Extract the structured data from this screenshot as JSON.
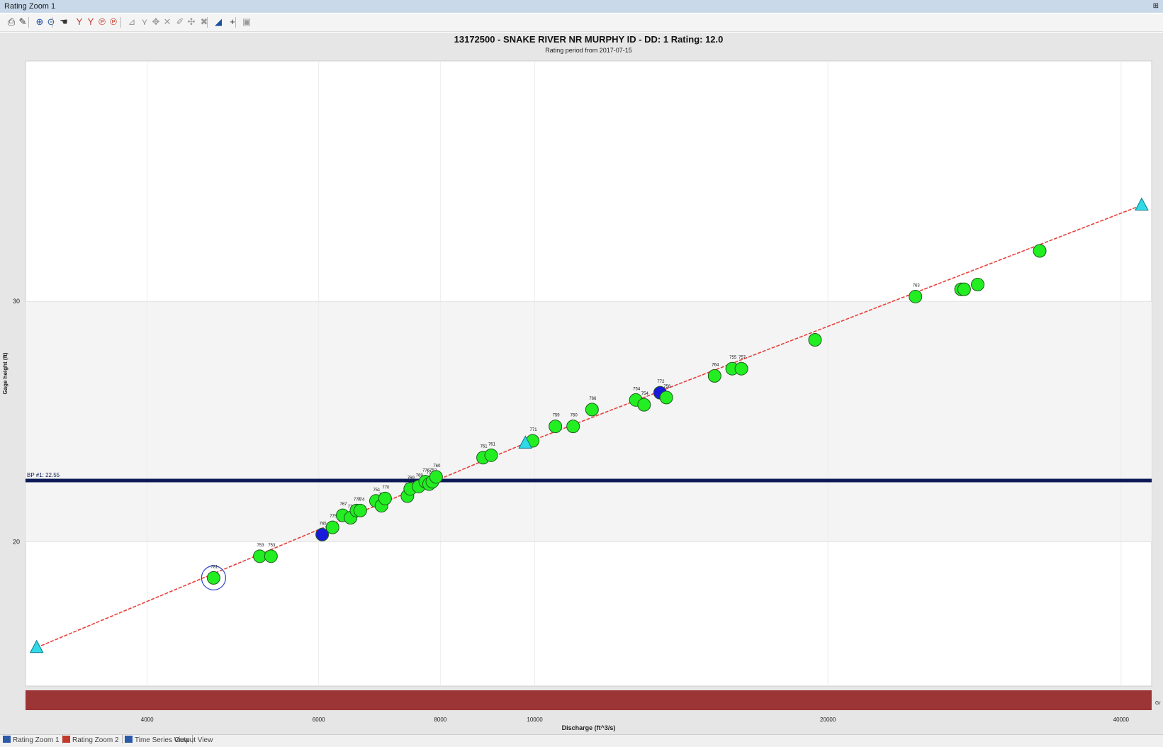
{
  "window": {
    "title": "Rating Zoom 1",
    "pin": "⊞"
  },
  "toolbar": {
    "buttons": [
      {
        "name": "print-icon",
        "glyph": "⎙"
      },
      {
        "name": "edit-icon",
        "glyph": "✎"
      },
      {
        "name": "zoom-in-icon",
        "glyph": "⊕"
      },
      {
        "name": "zoom-fit-icon",
        "glyph": "⊙"
      },
      {
        "name": "pan-icon",
        "glyph": "☚"
      },
      {
        "name": "curve-icon",
        "glyph": "Y"
      },
      {
        "name": "curve-alt-icon",
        "glyph": "Y"
      },
      {
        "name": "curve-edit-icon",
        "glyph": "℗"
      },
      {
        "name": "curve-copy-icon",
        "glyph": "℗"
      },
      {
        "name": "line-tool-icon",
        "glyph": "⊿"
      },
      {
        "name": "point-tool-icon",
        "glyph": "⋎"
      },
      {
        "name": "drag-tool-icon",
        "glyph": "✥"
      },
      {
        "name": "delete-tool-icon",
        "glyph": "✕"
      },
      {
        "name": "pen-tool-icon",
        "glyph": "✐"
      },
      {
        "name": "move-tool-icon",
        "glyph": "✣"
      },
      {
        "name": "remove-tool-icon",
        "glyph": "✖"
      },
      {
        "name": "shift-tool-icon",
        "glyph": "◢"
      },
      {
        "name": "crosshair-icon",
        "glyph": "+"
      },
      {
        "name": "export-icon",
        "glyph": "▣"
      }
    ]
  },
  "chart_data": {
    "type": "scatter",
    "title": "13172500 - SNAKE RIVER NR MURPHY ID - DD: 1 Rating: 12.0",
    "subtitle": "Rating period from 2017-07-15",
    "xlabel": "Discharge (ft^3/s)",
    "ylabel": "Gage height (ft)",
    "x_scale": "log",
    "xlim": [
      3000,
      43000
    ],
    "ylim": [
      14,
      40
    ],
    "x_ticks": [
      4000,
      6000,
      8000,
      10000,
      20000,
      40000
    ],
    "y_ticks": [
      20,
      30
    ],
    "bands": [
      {
        "from": 20,
        "to": 30,
        "color": "#f4f4f4"
      }
    ],
    "breakpoint": {
      "label": "BP #1: 22.55",
      "value": 22.55,
      "color": "#0d1a57"
    },
    "rating_curve": {
      "color": "#e8403c",
      "points": [
        [
          3080,
          15.6
        ],
        [
          9780,
          24.1
        ],
        [
          42000,
          34.0
        ]
      ]
    },
    "curve_nodes": [
      [
        3080,
        15.6
      ],
      [
        9780,
        24.1
      ],
      [
        42000,
        34.0
      ]
    ],
    "measurements": [
      {
        "label": "781",
        "q": 4680,
        "h": 18.5,
        "color": "#22ee22",
        "selected": true
      },
      {
        "label": "753",
        "q": 5220,
        "h": 19.4,
        "color": "#22ee22"
      },
      {
        "label": "753",
        "q": 5360,
        "h": 19.4,
        "color": "#22ee22"
      },
      {
        "label": "765",
        "q": 6050,
        "h": 20.3,
        "color": "#1a1adb"
      },
      {
        "label": "775",
        "q": 6200,
        "h": 20.6,
        "color": "#22ee22"
      },
      {
        "label": "767",
        "q": 6350,
        "h": 21.1,
        "color": "#22ee22"
      },
      {
        "label": "778",
        "q": 6470,
        "h": 21.0,
        "color": "#22ee22"
      },
      {
        "label": "774",
        "q": 6560,
        "h": 21.3,
        "color": "#22ee22"
      },
      {
        "label": "774",
        "q": 6620,
        "h": 21.3,
        "color": "#22ee22"
      },
      {
        "label": "751",
        "q": 6870,
        "h": 21.7,
        "color": "#22ee22"
      },
      {
        "label": "777",
        "q": 6960,
        "h": 21.5,
        "color": "#22ee22"
      },
      {
        "label": "770",
        "q": 7020,
        "h": 21.8,
        "color": "#22ee22"
      },
      {
        "label": "762",
        "q": 7400,
        "h": 21.9,
        "color": "#22ee22"
      },
      {
        "label": "769",
        "q": 7450,
        "h": 22.2,
        "color": "#22ee22"
      },
      {
        "label": "769",
        "q": 7600,
        "h": 22.3,
        "color": "#22ee22"
      },
      {
        "label": "776",
        "q": 7720,
        "h": 22.5,
        "color": "#22ee22"
      },
      {
        "label": "773",
        "q": 7790,
        "h": 22.4,
        "color": "#22ee22"
      },
      {
        "label": "752",
        "q": 7850,
        "h": 22.5,
        "color": "#22ee22"
      },
      {
        "label": "760",
        "q": 7920,
        "h": 22.7,
        "color": "#22ee22"
      },
      {
        "label": "761",
        "q": 8850,
        "h": 23.5,
        "color": "#22ee22"
      },
      {
        "label": "761",
        "q": 9020,
        "h": 23.6,
        "color": "#22ee22"
      },
      {
        "label": "771",
        "q": 9950,
        "h": 24.2,
        "color": "#22ee22"
      },
      {
        "label": "759",
        "q": 10500,
        "h": 24.8,
        "color": "#22ee22"
      },
      {
        "label": "760",
        "q": 10950,
        "h": 24.8,
        "color": "#22ee22"
      },
      {
        "label": "766",
        "q": 11450,
        "h": 25.5,
        "color": "#22ee22"
      },
      {
        "label": "754",
        "q": 12700,
        "h": 25.9,
        "color": "#22ee22"
      },
      {
        "label": "754",
        "q": 12950,
        "h": 25.7,
        "color": "#22ee22"
      },
      {
        "label": "772",
        "q": 13450,
        "h": 26.2,
        "color": "#1a1adb"
      },
      {
        "label": "758",
        "q": 13650,
        "h": 26.0,
        "color": "#22ee22"
      },
      {
        "label": "764",
        "q": 15300,
        "h": 26.9,
        "color": "#22ee22"
      },
      {
        "label": "755",
        "q": 15950,
        "h": 27.2,
        "color": "#22ee22"
      },
      {
        "label": "757",
        "q": 16300,
        "h": 27.2,
        "color": "#22ee22"
      },
      {
        "label": "",
        "q": 19400,
        "h": 28.4,
        "color": "#22ee22"
      },
      {
        "label": "763",
        "q": 24600,
        "h": 30.2,
        "color": "#22ee22"
      },
      {
        "label": "",
        "q": 27400,
        "h": 30.5,
        "color": "#22ee22"
      },
      {
        "label": "",
        "q": 27600,
        "h": 30.5,
        "color": "#22ee22"
      },
      {
        "label": "",
        "q": 28500,
        "h": 30.7,
        "color": "#22ee22"
      },
      {
        "label": "",
        "q": 33000,
        "h": 32.1,
        "color": "#22ee22"
      }
    ],
    "bottom_bar_color": "#9c3535",
    "bottom_bar_label": "Gr"
  },
  "tabs": [
    {
      "label": "Rating Zoom 1",
      "icon_color": "#2a5aa8"
    },
    {
      "label": "Rating Zoom 2",
      "icon_color": "#c0392b"
    },
    {
      "label": "Time Series View",
      "icon_color": "#2a5aa8"
    },
    {
      "label": "Output View",
      "icon_color": ""
    }
  ]
}
